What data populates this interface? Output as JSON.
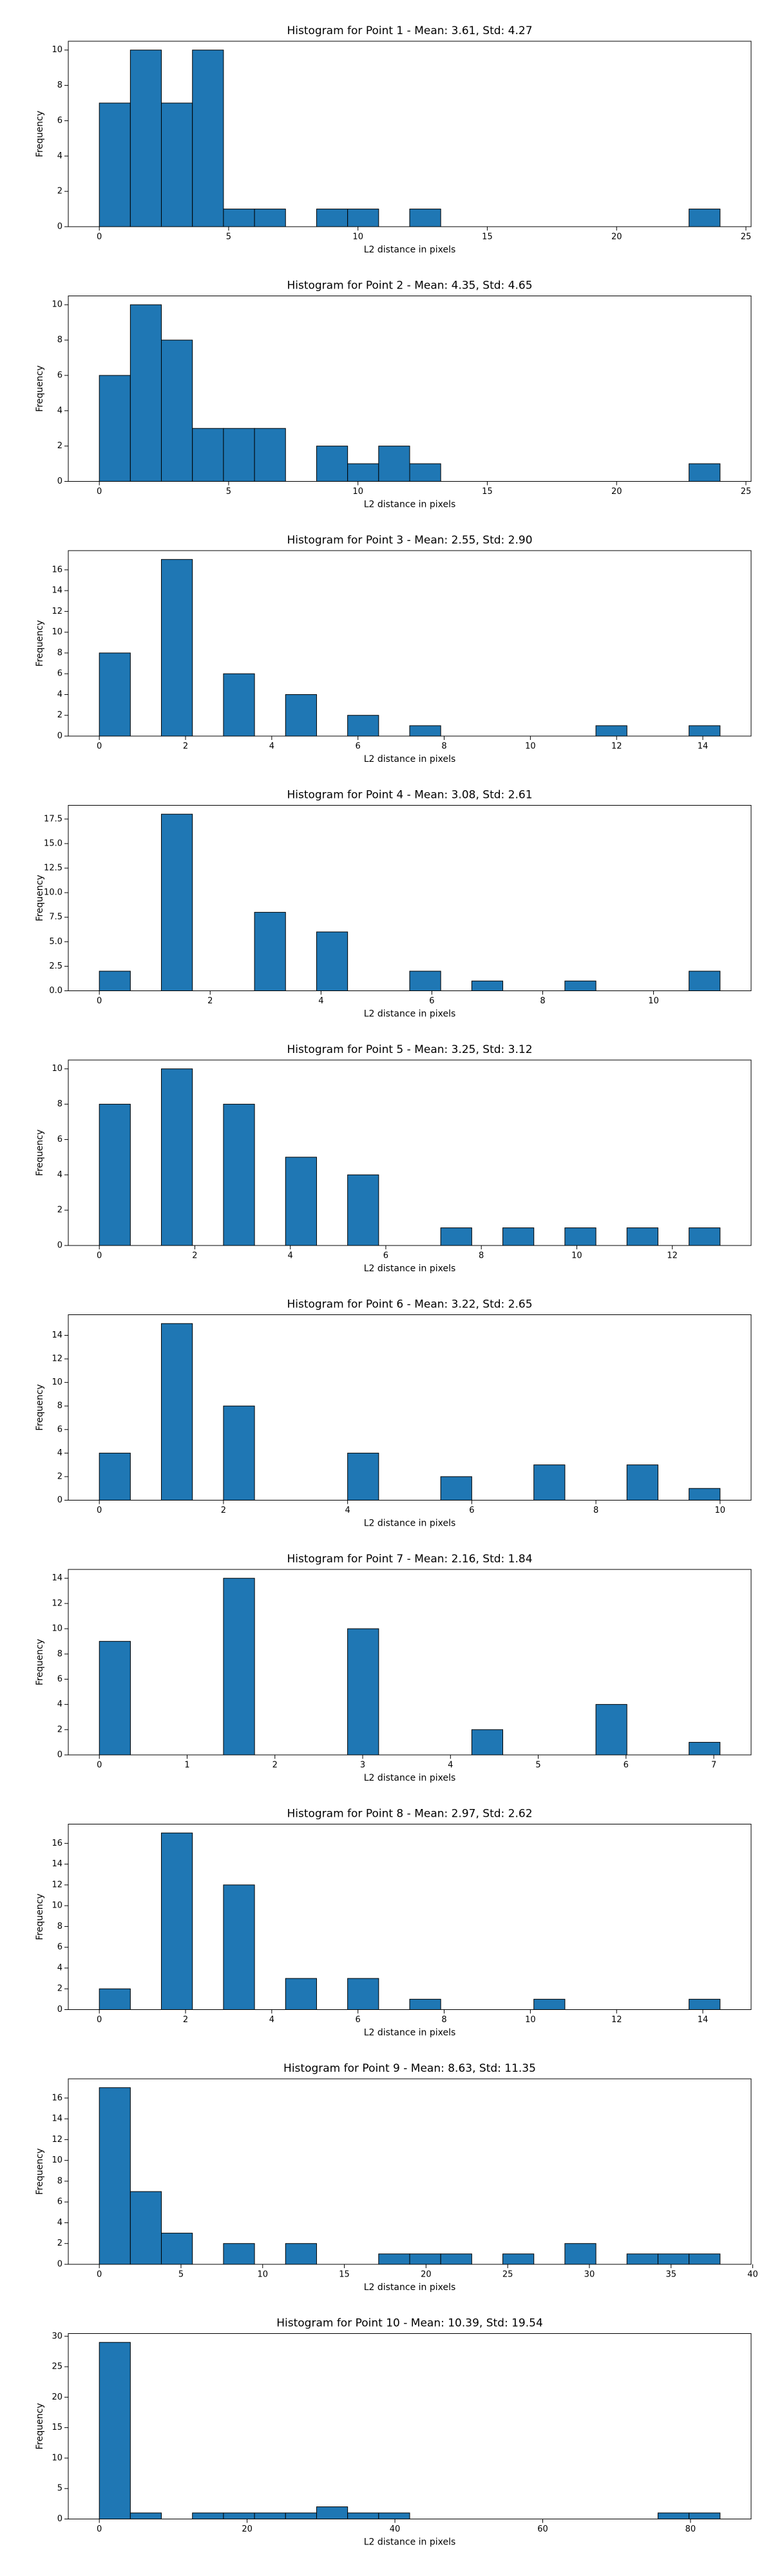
{
  "chart_data": [
    {
      "type": "histogram",
      "title": "Histogram for Point 1 - Mean: 3.61, Std: 4.27",
      "xlabel": "L2 distance in pixels",
      "ylabel": "Frequency",
      "color": "#1f77b4",
      "bins": [
        0,
        1.2,
        2.4,
        3.6,
        4.8,
        6,
        7.2,
        8.4,
        9.6,
        10.8,
        12,
        13.2,
        14.4,
        15.6,
        16.8,
        18,
        19.2,
        20.4,
        21.6,
        22.8,
        24
      ],
      "values": [
        7,
        10,
        7,
        10,
        1,
        1,
        0,
        1,
        1,
        0,
        1,
        0,
        0,
        0,
        0,
        0,
        0,
        0,
        0,
        1
      ],
      "xlim": [
        -1.2,
        25.2
      ],
      "xticks": [
        0,
        5,
        10,
        15,
        20,
        25
      ],
      "ylim": [
        0,
        10.5
      ],
      "yticks": [
        0,
        2,
        4,
        6,
        8,
        10
      ]
    },
    {
      "type": "histogram",
      "title": "Histogram for Point 2 - Mean: 4.35, Std: 4.65",
      "xlabel": "L2 distance in pixels",
      "ylabel": "Frequency",
      "color": "#1f77b4",
      "bins": [
        0,
        1.2,
        2.4,
        3.6,
        4.8,
        6,
        7.2,
        8.4,
        9.6,
        10.8,
        12,
        13.2,
        14.4,
        15.6,
        16.8,
        18,
        19.2,
        20.4,
        21.6,
        22.8,
        24
      ],
      "values": [
        6,
        10,
        8,
        3,
        3,
        3,
        0,
        2,
        1,
        2,
        1,
        0,
        0,
        0,
        0,
        0,
        0,
        0,
        0,
        1
      ],
      "xlim": [
        -1.2,
        25.2
      ],
      "xticks": [
        0,
        5,
        10,
        15,
        20,
        25
      ],
      "ylim": [
        0,
        10.5
      ],
      "yticks": [
        0,
        2,
        4,
        6,
        8,
        10
      ]
    },
    {
      "type": "histogram",
      "title": "Histogram for Point 3 - Mean: 2.55, Std: 2.90",
      "xlabel": "L2 distance in pixels",
      "ylabel": "Frequency",
      "color": "#1f77b4",
      "bins": [
        0,
        0.72,
        1.44,
        2.16,
        2.88,
        3.6,
        4.32,
        5.04,
        5.76,
        6.48,
        7.2,
        7.92,
        8.64,
        9.36,
        10.08,
        10.8,
        11.52,
        12.24,
        12.96,
        13.68,
        14.4
      ],
      "values": [
        8,
        0,
        17,
        0,
        6,
        0,
        4,
        0,
        2,
        0,
        1,
        0,
        0,
        0,
        0,
        0,
        1,
        0,
        0,
        1
      ],
      "xlim": [
        -0.72,
        15.12
      ],
      "xticks": [
        0,
        2,
        4,
        6,
        8,
        10,
        12,
        14
      ],
      "ylim": [
        0,
        17.85
      ],
      "yticks": [
        0,
        2,
        4,
        6,
        8,
        10,
        12,
        14,
        16
      ]
    },
    {
      "type": "histogram",
      "title": "Histogram for Point 4 - Mean: 3.08, Std: 2.61",
      "xlabel": "L2 distance in pixels",
      "ylabel": "Frequency",
      "color": "#1f77b4",
      "bins": [
        0,
        0.56,
        1.12,
        1.68,
        2.24,
        2.8,
        3.36,
        3.92,
        4.48,
        5.04,
        5.6,
        6.16,
        6.72,
        7.28,
        7.84,
        8.4,
        8.96,
        9.52,
        10.08,
        10.64,
        11.2
      ],
      "values": [
        2,
        0,
        18,
        0,
        0,
        8,
        0,
        6,
        0,
        0,
        2,
        0,
        1,
        0,
        0,
        1,
        0,
        0,
        0,
        2
      ],
      "xlim": [
        -0.56,
        11.76
      ],
      "xticks": [
        0,
        2,
        4,
        6,
        8,
        10
      ],
      "ylim": [
        0,
        18.9
      ],
      "yticks": [
        {
          "value": 0,
          "label": "0.0"
        },
        2.5,
        {
          "value": 5,
          "label": "5.0"
        },
        7.5,
        {
          "value": 10,
          "label": "10.0"
        },
        12.5,
        {
          "value": 15,
          "label": "15.0"
        },
        17.5
      ]
    },
    {
      "type": "histogram",
      "title": "Histogram for Point 5 - Mean: 3.25, Std: 3.12",
      "xlabel": "L2 distance in pixels",
      "ylabel": "Frequency",
      "color": "#1f77b4",
      "bins": [
        0,
        0.65,
        1.3,
        1.95,
        2.6,
        3.25,
        3.9,
        4.55,
        5.2,
        5.85,
        6.5,
        7.15,
        7.8,
        8.45,
        9.1,
        9.75,
        10.4,
        11.05,
        11.7,
        12.35,
        13
      ],
      "values": [
        8,
        0,
        10,
        0,
        8,
        0,
        5,
        0,
        4,
        0,
        0,
        1,
        0,
        1,
        0,
        1,
        0,
        1,
        0,
        1
      ],
      "xlim": [
        -0.65,
        13.65
      ],
      "xticks": [
        0,
        2,
        4,
        6,
        8,
        10,
        12
      ],
      "ylim": [
        0,
        10.5
      ],
      "yticks": [
        0,
        2,
        4,
        6,
        8,
        10
      ]
    },
    {
      "type": "histogram",
      "title": "Histogram for Point 6 - Mean: 3.22, Std: 2.65",
      "xlabel": "L2 distance in pixels",
      "ylabel": "Frequency",
      "color": "#1f77b4",
      "bins": [
        0,
        0.5,
        1,
        1.5,
        2,
        2.5,
        3,
        3.5,
        4,
        4.5,
        5,
        5.5,
        6,
        6.5,
        7,
        7.5,
        8,
        8.5,
        9,
        9.5,
        10
      ],
      "values": [
        4,
        0,
        15,
        0,
        8,
        0,
        0,
        0,
        4,
        0,
        0,
        2,
        0,
        0,
        3,
        0,
        0,
        3,
        0,
        1
      ],
      "xlim": [
        -0.5,
        10.5
      ],
      "xticks": [
        0,
        2,
        4,
        6,
        8,
        10
      ],
      "ylim": [
        0,
        15.75
      ],
      "yticks": [
        0,
        2,
        4,
        6,
        8,
        10,
        12,
        14
      ]
    },
    {
      "type": "histogram",
      "title": "Histogram for Point 7 - Mean: 2.16, Std: 1.84",
      "xlabel": "L2 distance in pixels",
      "ylabel": "Frequency",
      "color": "#1f77b4",
      "bins": [
        0,
        0.354,
        0.707,
        1.061,
        1.414,
        1.768,
        2.121,
        2.475,
        2.828,
        3.182,
        3.536,
        3.889,
        4.243,
        4.596,
        4.95,
        5.303,
        5.657,
        6.01,
        6.364,
        6.718,
        7.071
      ],
      "values": [
        9,
        0,
        0,
        0,
        14,
        0,
        0,
        0,
        10,
        0,
        0,
        0,
        2,
        0,
        0,
        0,
        4,
        0,
        0,
        1
      ],
      "xlim": [
        -0.354,
        7.425
      ],
      "xticks": [
        0,
        1,
        2,
        3,
        4,
        5,
        6,
        7
      ],
      "ylim": [
        0,
        14.7
      ],
      "yticks": [
        0,
        2,
        4,
        6,
        8,
        10,
        12,
        14
      ]
    },
    {
      "type": "histogram",
      "title": "Histogram for Point 8 - Mean: 2.97, Std: 2.62",
      "xlabel": "L2 distance in pixels",
      "ylabel": "Frequency",
      "color": "#1f77b4",
      "bins": [
        0,
        0.72,
        1.44,
        2.16,
        2.88,
        3.6,
        4.32,
        5.04,
        5.76,
        6.48,
        7.2,
        7.92,
        8.64,
        9.36,
        10.08,
        10.8,
        11.52,
        12.24,
        12.96,
        13.68,
        14.4
      ],
      "values": [
        2,
        0,
        17,
        0,
        12,
        0,
        3,
        0,
        3,
        0,
        1,
        0,
        0,
        0,
        1,
        0,
        0,
        0,
        0,
        1
      ],
      "xlim": [
        -0.72,
        15.12
      ],
      "xticks": [
        0,
        2,
        4,
        6,
        8,
        10,
        12,
        14
      ],
      "ylim": [
        0,
        17.85
      ],
      "yticks": [
        0,
        2,
        4,
        6,
        8,
        10,
        12,
        14,
        16
      ]
    },
    {
      "type": "histogram",
      "title": "Histogram for Point 9 - Mean: 8.63, Std: 11.35",
      "xlabel": "L2 distance in pixels",
      "ylabel": "Frequency",
      "color": "#1f77b4",
      "bins": [
        0,
        1.9,
        3.8,
        5.7,
        7.6,
        9.5,
        11.4,
        13.3,
        15.2,
        17.1,
        19,
        20.9,
        22.8,
        24.7,
        26.6,
        28.5,
        30.4,
        32.3,
        34.2,
        36.1,
        38
      ],
      "values": [
        17,
        7,
        3,
        0,
        2,
        0,
        2,
        0,
        0,
        1,
        1,
        1,
        0,
        1,
        0,
        2,
        0,
        1,
        1,
        1
      ],
      "xlim": [
        -1.9,
        39.9
      ],
      "xticks": [
        0,
        5,
        10,
        15,
        20,
        25,
        30,
        35,
        40
      ],
      "ylim": [
        0,
        17.85
      ],
      "yticks": [
        0,
        2,
        4,
        6,
        8,
        10,
        12,
        14,
        16
      ]
    },
    {
      "type": "histogram",
      "title": "Histogram for Point 10 - Mean: 10.39, Std: 19.54",
      "xlabel": "L2 distance in pixels",
      "ylabel": "Frequency",
      "color": "#1f77b4",
      "bins": [
        0,
        4.2,
        8.4,
        12.6,
        16.8,
        21,
        25.2,
        29.4,
        33.6,
        37.8,
        42,
        46.2,
        50.4,
        54.6,
        58.8,
        63,
        67.2,
        71.4,
        75.6,
        79.8,
        84
      ],
      "values": [
        29,
        1,
        0,
        1,
        1,
        1,
        1,
        2,
        1,
        1,
        0,
        0,
        0,
        0,
        0,
        0,
        0,
        0,
        1,
        1
      ],
      "xlim": [
        -4.2,
        88.2
      ],
      "xticks": [
        0,
        20,
        40,
        60,
        80
      ],
      "ylim": [
        0,
        30.45
      ],
      "yticks": [
        0,
        5,
        10,
        15,
        20,
        25,
        30
      ]
    }
  ]
}
